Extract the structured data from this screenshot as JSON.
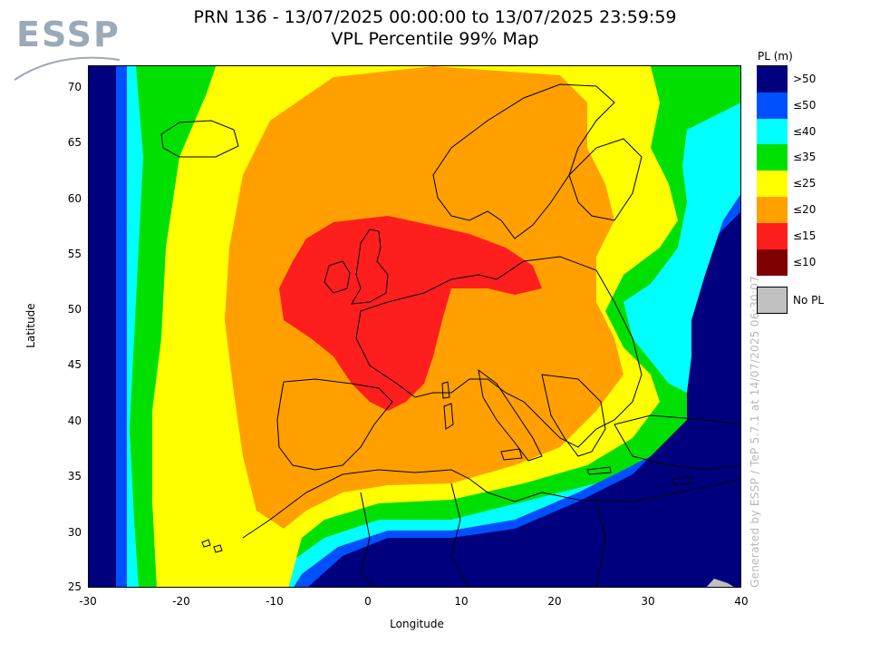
{
  "logo": {
    "text": "ESSP"
  },
  "title": {
    "line1": "PRN 136 - 13/07/2025 00:00:00 to 13/07/2025 23:59:59",
    "line2": "VPL Percentile 99% Map"
  },
  "axes": {
    "xlabel": "Longitude",
    "ylabel": "Latitude",
    "xticks": [
      "-30",
      "-20",
      "-10",
      "0",
      "10",
      "20",
      "30",
      "40"
    ],
    "yticks": [
      "70",
      "65",
      "60",
      "55",
      "50",
      "45",
      "40",
      "35",
      "30",
      "25"
    ]
  },
  "legend": {
    "title": "PL (m)",
    "items": [
      {
        "label": ">50",
        "color": "#00007f"
      },
      {
        "label": "≤50",
        "color": "#0050ff"
      },
      {
        "label": "≤40",
        "color": "#00ffff"
      },
      {
        "label": "≤35",
        "color": "#00e000"
      },
      {
        "label": "≤25",
        "color": "#ffff00"
      },
      {
        "label": "≤20",
        "color": "#ffa000"
      },
      {
        "label": "≤15",
        "color": "#ff1e1e"
      },
      {
        "label": "≤10",
        "color": "#800000"
      }
    ],
    "no_pl": {
      "label": "No PL",
      "color": "#c0c0c0"
    }
  },
  "watermark": "Generated by ESSP / TeP 5.7.1 at 14/07/2025 06:30:07",
  "map": {
    "lon_range": [
      -30,
      40
    ],
    "lat_range": [
      25,
      72
    ]
  }
}
